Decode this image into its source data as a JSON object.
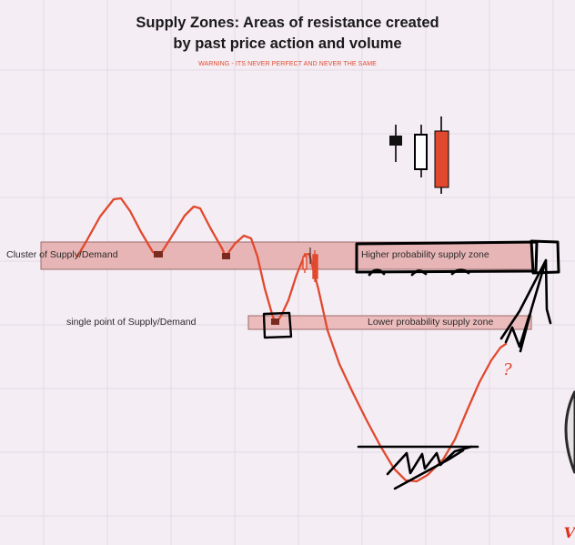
{
  "title": {
    "line1": "Supply Zones: Areas of resistance created",
    "line2": "by past price action and volume"
  },
  "warning": "WARNING - ITS NEVER PERFECT AND NEVER THE SAME",
  "zones": {
    "cluster_label": "Cluster of Supply/Demand",
    "single_label": "single point of Supply/Demand",
    "higher_label": "Higher probability supply zone",
    "lower_label": "Lower probability supply zone"
  },
  "annotation": {
    "question_mark": "?"
  },
  "watermark": "V",
  "colors": {
    "background": "#f5edf4",
    "zone_fill": "#e8b5b6",
    "zone_stroke": "#9a6a6a",
    "price_line": "#e0492e",
    "ink": "#000000",
    "warning": "#e0492e"
  }
}
